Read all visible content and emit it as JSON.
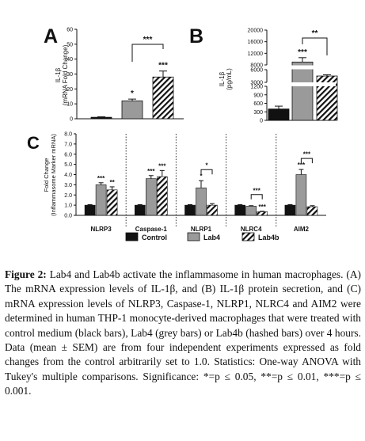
{
  "figure": {
    "colors": {
      "control": "#111111",
      "lab4": "#9a9a9a",
      "lab4b_hatch": "#111111"
    },
    "legend": [
      "Control",
      "Lab4",
      "Lab4b"
    ],
    "caption": {
      "label": "Figure 2:",
      "text": "Lab4 and Lab4b activate the inflammasome in human macrophages. (A) The mRNA expression levels of IL-1β, and (B) IL-1β protein secretion, and (C) mRNA expression levels of NLRP3, Caspase-1, NLRP1, NLRC4 and AIM2 were determined in human THP-1 monocyte-derived macrophages that were treated with control medium (black bars), Lab4 (grey bars) or Lab4b (hashed bars) over 4 hours. Data (mean ± SEM) are from four independent experiments expressed as fold changes from the control arbitrarily set to 1.0. Statistics: One-way ANOVA with Tukey's multiple comparisons. Significance: *=p ≤ 0.05, **=p ≤ 0.01, ***=p ≤ 0.001."
    }
  },
  "chart_data": [
    {
      "panel": "A",
      "type": "bar",
      "ylabel": "IL-1β\n(mRNA Fold Change)",
      "ylim": [
        0,
        60
      ],
      "yticks": [
        0,
        10,
        20,
        30,
        40,
        50,
        60
      ],
      "categories": [
        "Control",
        "Lab4",
        "Lab4b"
      ],
      "values": [
        1,
        12,
        28
      ],
      "errors": [
        0.3,
        1.2,
        4
      ],
      "bar_labels": [
        "",
        "*",
        "***"
      ],
      "brackets": [
        {
          "from": 1,
          "to": 2,
          "label": "***"
        }
      ]
    },
    {
      "panel": "B",
      "type": "bar",
      "ylabel": "IL-1β\n(pg/mL)",
      "yticks": [
        0,
        300,
        600,
        900,
        1200,
        3000,
        6000,
        8000,
        12000,
        16000,
        20000
      ],
      "axis_breaks": true,
      "categories": [
        "Control",
        "Lab4",
        "Lab4b"
      ],
      "values": [
        400,
        9000,
        4500
      ],
      "errors": [
        100,
        1500,
        300
      ],
      "bar_labels": [
        "",
        "***",
        "*"
      ],
      "brackets": [
        {
          "from": 1,
          "to": 2,
          "label": "**"
        }
      ]
    },
    {
      "panel": "C",
      "type": "bar",
      "ylabel": "Fold Change\n(Inflammasome Marker mRNA)",
      "ylim": [
        0,
        8
      ],
      "yticks": [
        "0.0",
        "1.0",
        "2.0",
        "3.0",
        "4.0",
        "5.0",
        "6.0",
        "7.0",
        "8.0"
      ],
      "categories": [
        "NLRP3",
        "Caspase-1",
        "NLRP1",
        "NLRC4",
        "AIM2"
      ],
      "series": [
        {
          "name": "Control",
          "values": [
            1.0,
            1.0,
            1.0,
            1.0,
            1.0
          ],
          "errors": [
            0.05,
            0.05,
            0.05,
            0.05,
            0.05
          ],
          "labels": [
            "",
            "",
            "",
            "",
            ""
          ]
        },
        {
          "name": "Lab4",
          "values": [
            3.0,
            3.6,
            2.7,
            0.9,
            4.0
          ],
          "errors": [
            0.2,
            0.3,
            0.7,
            0.05,
            0.5
          ],
          "labels": [
            "***",
            "***",
            "*",
            "",
            "***"
          ]
        },
        {
          "name": "Lab4b",
          "values": [
            2.5,
            3.8,
            1.0,
            0.35,
            0.85
          ],
          "errors": [
            0.3,
            0.6,
            0.15,
            0.05,
            0.1
          ],
          "labels": [
            "**",
            "***",
            "",
            "***",
            ""
          ]
        }
      ],
      "brackets": [
        {
          "category": 2,
          "label": "*"
        },
        {
          "category": 3,
          "label": "***"
        },
        {
          "category": 4,
          "label": "***"
        }
      ]
    }
  ]
}
